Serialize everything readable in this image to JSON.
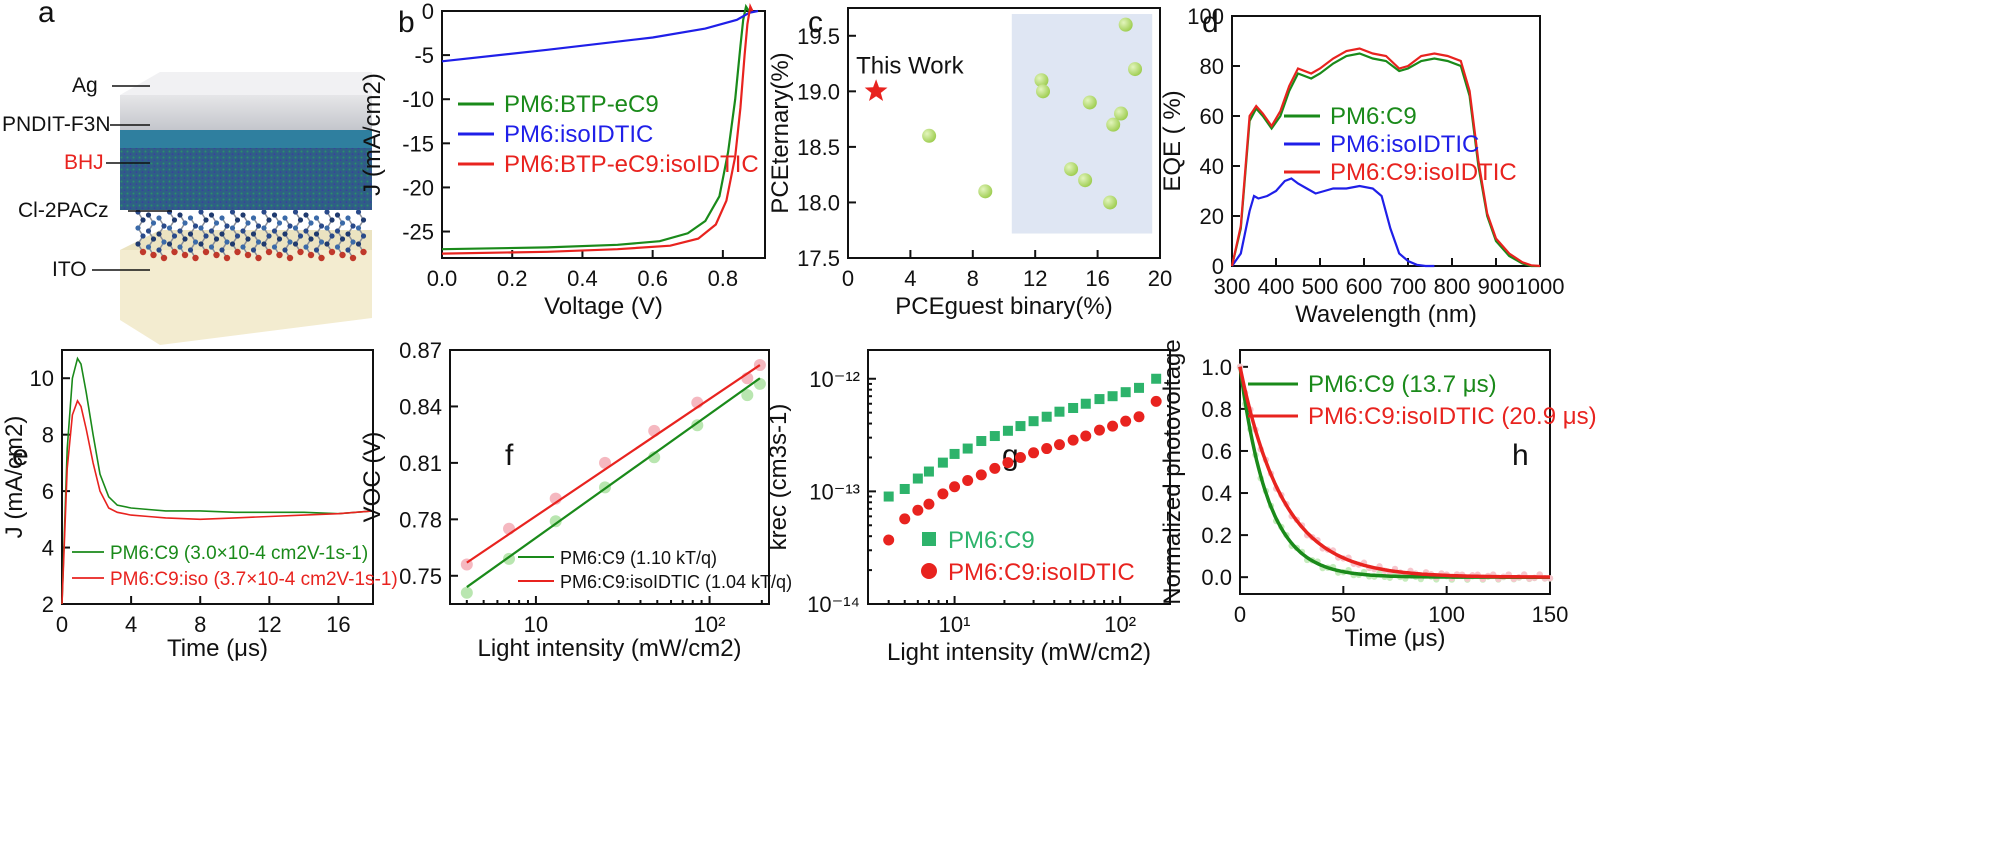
{
  "panels": {
    "a": {
      "letter": "a",
      "layers": [
        {
          "label": "Ag",
          "color": "#111111"
        },
        {
          "label": "PNDIT-F3N",
          "color": "#111111"
        },
        {
          "label": "BHJ",
          "color": "#e8231f"
        },
        {
          "label": "Cl-2PACz",
          "color": "#111111"
        },
        {
          "label": "ITO",
          "color": "#111111"
        }
      ]
    },
    "b": {
      "letter": "b"
    },
    "c": {
      "letter": "c",
      "annotation": "This Work"
    },
    "d": {
      "letter": "d"
    },
    "e": {
      "letter": "e"
    },
    "f": {
      "letter": "f"
    },
    "g": {
      "letter": "g"
    },
    "h": {
      "letter": "h"
    }
  },
  "colors": {
    "green": "#1a8a1a",
    "blue": "#1f1fe8",
    "red": "#e8231f",
    "lightgreen": "#a6d96a",
    "shade": "#dfe6f3"
  },
  "chart_data": [
    {
      "id": "b",
      "type": "line",
      "xlabel": "Voltage (V)",
      "ylabel": "J (mA/cm2)",
      "xlim": [
        0,
        0.92
      ],
      "ylim": [
        -28,
        0
      ],
      "xticks": [
        0.0,
        0.2,
        0.4,
        0.6,
        0.8
      ],
      "yticks": [
        0,
        -5,
        -10,
        -15,
        -20,
        -25
      ],
      "legend": "center-left",
      "series": [
        {
          "name": "PM6:BTP-eC9",
          "color": "#1a8a1a",
          "x": [
            0,
            0.3,
            0.5,
            0.62,
            0.7,
            0.75,
            0.79,
            0.815,
            0.835,
            0.85,
            0.858,
            0.866,
            0.874
          ],
          "y": [
            -27.0,
            -26.8,
            -26.5,
            -26.1,
            -25.2,
            -23.8,
            -21.0,
            -16.0,
            -10.0,
            -4.0,
            -1.0,
            0.5,
            0.0
          ]
        },
        {
          "name": "PM6:isoIDTIC",
          "color": "#1f1fe8",
          "x": [
            0,
            0.3,
            0.6,
            0.75,
            0.84,
            0.875,
            0.9
          ],
          "y": [
            -5.7,
            -4.4,
            -3.0,
            -2.0,
            -1.0,
            -0.2,
            0.0
          ]
        },
        {
          "name": "PM6:BTP-eC9:isoIDTIC",
          "color": "#e8231f",
          "x": [
            0,
            0.3,
            0.5,
            0.65,
            0.73,
            0.78,
            0.81,
            0.835,
            0.85,
            0.862,
            0.87,
            0.878,
            0.884
          ],
          "y": [
            -27.5,
            -27.3,
            -27.0,
            -26.6,
            -25.8,
            -24.2,
            -21.5,
            -16.5,
            -11.0,
            -5.0,
            -1.5,
            0.5,
            0.0
          ]
        }
      ]
    },
    {
      "id": "c",
      "type": "scatter",
      "xlabel": "PCEguest binary(%)",
      "ylabel": "PCEternary(%)",
      "xlim": [
        0,
        20
      ],
      "ylim": [
        17.5,
        19.75
      ],
      "xticks": [
        0,
        4,
        8,
        12,
        16,
        20
      ],
      "yticks": [
        17.5,
        18.0,
        18.5,
        19.0,
        19.5
      ],
      "shaded_x_range": [
        10.5,
        19.5
      ],
      "this_work": {
        "x": 1.8,
        "y": 19.0
      },
      "points": [
        {
          "x": 5.2,
          "y": 18.6
        },
        {
          "x": 8.8,
          "y": 18.1
        },
        {
          "x": 12.4,
          "y": 19.1
        },
        {
          "x": 12.5,
          "y": 19.0
        },
        {
          "x": 14.3,
          "y": 18.3
        },
        {
          "x": 15.2,
          "y": 18.2
        },
        {
          "x": 15.5,
          "y": 18.9
        },
        {
          "x": 16.8,
          "y": 18.0
        },
        {
          "x": 17.0,
          "y": 18.7
        },
        {
          "x": 17.5,
          "y": 18.8
        },
        {
          "x": 17.8,
          "y": 19.6
        },
        {
          "x": 18.4,
          "y": 19.2
        }
      ]
    },
    {
      "id": "d",
      "type": "line",
      "xlabel": "Wavelength (nm)",
      "ylabel": "EQE ( %)",
      "xlim": [
        300,
        1000
      ],
      "ylim": [
        0,
        100
      ],
      "xticks": [
        300,
        400,
        500,
        600,
        700,
        800,
        900,
        1000
      ],
      "yticks": [
        0,
        20,
        40,
        60,
        80,
        100
      ],
      "legend": "center-left",
      "series": [
        {
          "name": "PM6:C9",
          "color": "#1a8a1a",
          "x": [
            300,
            320,
            340,
            355,
            370,
            390,
            410,
            430,
            450,
            480,
            500,
            530,
            560,
            590,
            620,
            650,
            680,
            700,
            730,
            760,
            790,
            820,
            840,
            860,
            880,
            900,
            930,
            960,
            980,
            1000
          ],
          "y": [
            0,
            15,
            58,
            63,
            60,
            55,
            60,
            70,
            77,
            75,
            77,
            81,
            84,
            85,
            83,
            82,
            78,
            79,
            82,
            83,
            82,
            80,
            68,
            40,
            20,
            10,
            4,
            1,
            0,
            0
          ]
        },
        {
          "name": "PM6:isoIDTIC",
          "color": "#1f1fe8",
          "x": [
            300,
            320,
            340,
            350,
            360,
            380,
            400,
            420,
            435,
            450,
            470,
            490,
            510,
            530,
            560,
            590,
            620,
            640,
            660,
            680,
            700,
            720,
            740,
            760
          ],
          "y": [
            0,
            5,
            22,
            28,
            27,
            28,
            30,
            34,
            35,
            33,
            31,
            29,
            30,
            31,
            31,
            32,
            31,
            28,
            15,
            5,
            2,
            0.5,
            0,
            0
          ]
        },
        {
          "name": "PM6:C9:isoIDTIC",
          "color": "#e8231f",
          "x": [
            300,
            320,
            340,
            355,
            370,
            390,
            410,
            430,
            450,
            480,
            500,
            530,
            560,
            590,
            620,
            650,
            680,
            700,
            730,
            760,
            790,
            820,
            840,
            860,
            880,
            900,
            930,
            960,
            980,
            1000
          ],
          "y": [
            0,
            16,
            60,
            64,
            61,
            56,
            62,
            72,
            79,
            77,
            79,
            83,
            86,
            87,
            85,
            84,
            79,
            80,
            84,
            85,
            84,
            82,
            70,
            42,
            21,
            11,
            5,
            1.5,
            0.3,
            0
          ]
        }
      ]
    },
    {
      "id": "e",
      "type": "line",
      "xlabel": "Time (μs)",
      "ylabel": "J (mA/cm2)",
      "xlim": [
        0,
        18
      ],
      "ylim": [
        2,
        11
      ],
      "xticks": [
        0,
        4,
        8,
        12,
        16
      ],
      "yticks": [
        2,
        4,
        6,
        8,
        10
      ],
      "legend": "bottom-left",
      "series": [
        {
          "name": "PM6:C9 (3.0×10-4 cm2V-1s-1)",
          "color": "#1a8a1a",
          "x": [
            0,
            0.3,
            0.6,
            0.9,
            1.1,
            1.4,
            1.8,
            2.2,
            2.7,
            3.2,
            4,
            5,
            6,
            8,
            10,
            12,
            14,
            16,
            18
          ],
          "y": [
            2,
            7.5,
            10.0,
            10.7,
            10.5,
            9.5,
            8.0,
            6.6,
            5.8,
            5.5,
            5.4,
            5.35,
            5.3,
            5.3,
            5.25,
            5.25,
            5.25,
            5.2,
            5.3
          ]
        },
        {
          "name": "PM6:C9:iso (3.7×10-4 cm2V-1s-1)",
          "color": "#e8231f",
          "x": [
            0,
            0.3,
            0.6,
            0.9,
            1.1,
            1.4,
            1.8,
            2.2,
            2.7,
            3.2,
            4,
            5,
            6,
            8,
            10,
            12,
            14,
            16,
            18
          ],
          "y": [
            2,
            6.8,
            8.7,
            9.2,
            9.0,
            8.2,
            7.0,
            6.0,
            5.4,
            5.25,
            5.15,
            5.1,
            5.05,
            5.0,
            5.05,
            5.1,
            5.15,
            5.2,
            5.3
          ]
        }
      ]
    },
    {
      "id": "f",
      "type": "scatter",
      "xlabel": "Light intensity (mW/cm2)",
      "ylabel": "VOC (V)",
      "xscale": "log",
      "xlim": [
        3.2,
        220
      ],
      "ylim": [
        0.735,
        0.87
      ],
      "xticks": [
        10,
        100
      ],
      "xticklabels": [
        "10",
        "10²"
      ],
      "yticks": [
        0.75,
        0.78,
        0.81,
        0.84,
        0.87
      ],
      "legend": "bottom-right",
      "series": [
        {
          "name": "PM6:C9 (1.10 kT/q)",
          "color": "#1a8a1a",
          "x": [
            4,
            7,
            13,
            25,
            48,
            85,
            165,
            195
          ],
          "y": [
            0.741,
            0.759,
            0.779,
            0.797,
            0.813,
            0.83,
            0.846,
            0.852
          ],
          "fit": [
            [
              4,
              0.744
            ],
            [
              195,
              0.855
            ]
          ]
        },
        {
          "name": "PM6:C9:isoIDTIC (1.04 kT/q)",
          "color": "#e8231f",
          "x": [
            4,
            7,
            13,
            25,
            48,
            85,
            165,
            195
          ],
          "y": [
            0.756,
            0.775,
            0.791,
            0.81,
            0.827,
            0.842,
            0.855,
            0.862
          ],
          "fit": [
            [
              4,
              0.757
            ],
            [
              195,
              0.862
            ]
          ]
        }
      ]
    },
    {
      "id": "g",
      "type": "scatter",
      "xlabel": "Light intensity (mW/cm2)",
      "ylabel": "krec (cm3s-1)",
      "xscale": "log",
      "yscale": "log",
      "xlim": [
        3,
        200
      ],
      "ylim": [
        1e-14,
        1.8e-12
      ],
      "xticks": [
        10,
        100
      ],
      "xticklabels": [
        "10¹",
        "10²"
      ],
      "yticks": [
        1e-14,
        1e-13,
        1e-12
      ],
      "yticklabels": [
        "10⁻¹⁴",
        "10⁻¹³",
        "10⁻¹²"
      ],
      "legend": "bottom-right",
      "series": [
        {
          "name": "PM6:C9",
          "color": "#2db36b",
          "marker": "square",
          "x": [
            4,
            5,
            6,
            7,
            8.5,
            10,
            12,
            14.5,
            17.5,
            21,
            25,
            30,
            36,
            43,
            52,
            62,
            75,
            90,
            108,
            130,
            165
          ],
          "y": [
            9e-14,
            1.05e-13,
            1.3e-13,
            1.5e-13,
            1.8e-13,
            2.15e-13,
            2.4e-13,
            2.8e-13,
            3.1e-13,
            3.45e-13,
            3.8e-13,
            4.2e-13,
            4.6e-13,
            5.1e-13,
            5.5e-13,
            6e-13,
            6.6e-13,
            7e-13,
            7.6e-13,
            8.3e-13,
            1e-12
          ]
        },
        {
          "name": "PM6:C9:isoIDTIC",
          "color": "#e8231f",
          "marker": "circle",
          "x": [
            4,
            5,
            6,
            7,
            8.5,
            10,
            12,
            14.5,
            17.5,
            21,
            25,
            30,
            36,
            43,
            52,
            62,
            75,
            90,
            108,
            130,
            165
          ],
          "y": [
            3.7e-14,
            5.7e-14,
            6.8e-14,
            7.7e-14,
            9.5e-14,
            1.1e-13,
            1.25e-13,
            1.4e-13,
            1.6e-13,
            1.8e-13,
            2e-13,
            2.2e-13,
            2.4e-13,
            2.6e-13,
            2.85e-13,
            3.1e-13,
            3.5e-13,
            3.8e-13,
            4.2e-13,
            4.6e-13,
            6.3e-13
          ]
        }
      ]
    },
    {
      "id": "h",
      "type": "line",
      "xlabel": "Time (μs)",
      "ylabel": "Normalized photovoltage",
      "xlim": [
        0,
        150
      ],
      "ylim": [
        -0.08,
        1.08
      ],
      "xticks": [
        0,
        50,
        100,
        150
      ],
      "yticks": [
        0.0,
        0.2,
        0.4,
        0.6,
        0.8,
        1.0
      ],
      "legend": "top-right",
      "series": [
        {
          "name": "PM6:C9 (13.7 μs)",
          "color": "#1a8a1a",
          "tau": 13.7
        },
        {
          "name": "PM6:C9:isoIDTIC (20.9 μs)",
          "color": "#e8231f",
          "tau": 20.9
        }
      ]
    }
  ]
}
